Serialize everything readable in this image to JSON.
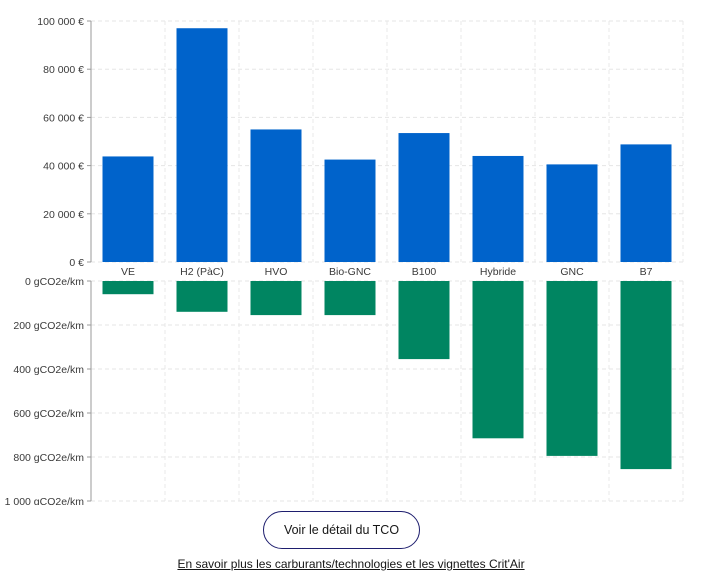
{
  "chart_data": [
    {
      "type": "bar",
      "title": "",
      "xlabel": "",
      "ylabel": "",
      "categories": [
        "VE",
        "H2 (PàC)",
        "HVO",
        "Bio-GNC",
        "B100",
        "Hybride",
        "GNC",
        "B7"
      ],
      "values": [
        43800,
        97000,
        55000,
        42500,
        53500,
        44000,
        40500,
        48800
      ],
      "ylim": [
        0,
        100000
      ],
      "yticks": [
        "0 €",
        "20 000 €",
        "40 000 €",
        "60 000 €",
        "80 000 €",
        "100 000 €"
      ],
      "ytick_values": [
        0,
        20000,
        40000,
        60000,
        80000,
        100000
      ],
      "color": "#0063cb",
      "grid": true
    },
    {
      "type": "bar",
      "orientation": "inverted",
      "title": "",
      "xlabel": "",
      "ylabel": "",
      "categories": [
        "VE",
        "H2 (PàC)",
        "HVO",
        "Bio-GNC",
        "B100",
        "Hybride",
        "GNC",
        "B7"
      ],
      "values": [
        60,
        140,
        155,
        155,
        355,
        715,
        795,
        855
      ],
      "ylim": [
        0,
        1000
      ],
      "yticks": [
        "0 gCO2e/km",
        "200 gCO2e/km",
        "400 gCO2e/km",
        "600 gCO2e/km",
        "800 gCO2e/km",
        "1 000 gCO2e/km"
      ],
      "ytick_values": [
        0,
        200,
        400,
        600,
        800,
        1000
      ],
      "color": "#008561",
      "grid": true
    }
  ],
  "actions": {
    "tco_button_label": "Voir le détail du TCO",
    "info_link_label": "En savoir plus les carburants/technologies et les vignettes Crit'Air"
  }
}
